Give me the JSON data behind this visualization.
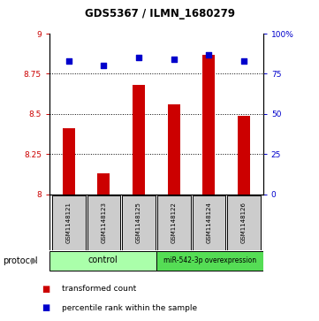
{
  "title": "GDS5367 / ILMN_1680279",
  "samples": [
    "GSM1148121",
    "GSM1148123",
    "GSM1148125",
    "GSM1148122",
    "GSM1148124",
    "GSM1148126"
  ],
  "bar_values": [
    8.41,
    8.13,
    8.68,
    8.56,
    8.87,
    8.49
  ],
  "dot_values": [
    83,
    80,
    85,
    84,
    87,
    83
  ],
  "ylim_left": [
    8.0,
    9.0
  ],
  "ylim_right": [
    0,
    100
  ],
  "yticks_left": [
    8.0,
    8.25,
    8.5,
    8.75,
    9.0
  ],
  "ytick_labels_left": [
    "8",
    "8.25",
    "8.5",
    "8.75",
    "9"
  ],
  "yticks_right": [
    0,
    25,
    50,
    75,
    100
  ],
  "ytick_labels_right": [
    "0",
    "25",
    "50",
    "75",
    "100%"
  ],
  "bar_color": "#cc0000",
  "dot_color": "#0000cc",
  "control_label": "control",
  "overexpr_label": "miR-542-3p overexpression",
  "control_color": "#aaffaa",
  "overexpr_color": "#55dd55",
  "protocol_label": "protocol",
  "legend_bar": "transformed count",
  "legend_dot": "percentile rank within the sample",
  "grid_yticks": [
    8.25,
    8.5,
    8.75
  ],
  "background_color": "#ffffff",
  "sample_box_color": "#cccccc"
}
